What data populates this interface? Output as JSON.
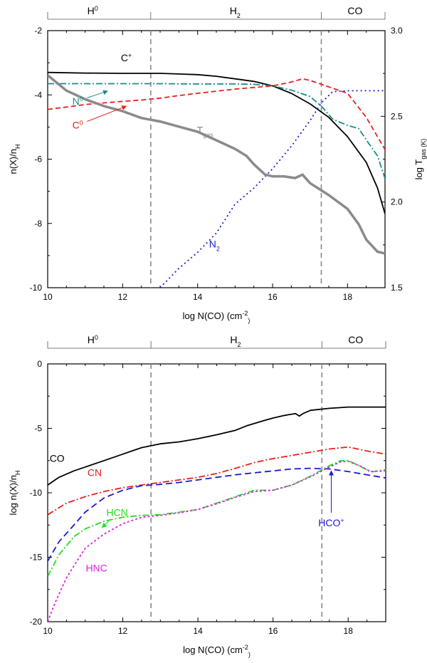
{
  "chart_data": [
    {
      "type": "line",
      "title": "",
      "xlabel": "log N(CO) (cm-2)",
      "xlabel_parts": [
        "log N(CO) (cm",
        "-2",
        ")"
      ],
      "ylabel": "n(X)/nH",
      "ylabel_parts": [
        "n(X)/n",
        "H"
      ],
      "y2label": "log Tgas (K)",
      "y2label_parts": [
        "log T",
        "gas",
        " (K)"
      ],
      "xlim": [
        10,
        19
      ],
      "ylim": [
        -10,
        -2
      ],
      "y2lim": [
        1.5,
        3.0
      ],
      "xticks": [
        "10",
        "12",
        "14",
        "16",
        "18"
      ],
      "yticks": [
        "-10",
        "-8",
        "-6",
        "-4",
        "-2"
      ],
      "y2ticks": [
        "1.5",
        "2.0",
        "2.5",
        "3.0"
      ],
      "zones": [
        {
          "parts": [
            "H",
            "0",
            ""
          ],
          "x": 11.2
        },
        {
          "parts": [
            "H",
            "",
            "2"
          ],
          "x": 15.0
        },
        {
          "parts": [
            "CO",
            "",
            ""
          ],
          "x": 18.2
        }
      ],
      "boundaries": [
        12.75,
        17.3
      ],
      "series": [
        {
          "name": "C+",
          "label_parts": [
            "C",
            "+",
            ""
          ],
          "color": "#000000",
          "dash": "",
          "width": 1.8,
          "axis": "left",
          "x": [
            10,
            11,
            12,
            13,
            14,
            14.5,
            15,
            15.5,
            16,
            16.5,
            17,
            17.5,
            18,
            18.5,
            18.8,
            19
          ],
          "y": [
            -3.3,
            -3.32,
            -3.33,
            -3.33,
            -3.37,
            -3.42,
            -3.5,
            -3.58,
            -3.72,
            -3.95,
            -4.28,
            -4.7,
            -5.3,
            -6.1,
            -6.9,
            -7.7
          ]
        },
        {
          "name": "N0",
          "label_parts": [
            "N",
            "0",
            ""
          ],
          "color": "#1a8a8a",
          "dash": "9,3,2,3",
          "width": 1.8,
          "axis": "left",
          "x": [
            10,
            11,
            12,
            13,
            14,
            15,
            15.5,
            16,
            16.5,
            17,
            17.3,
            17.6,
            18,
            18.3,
            18.5,
            18.8,
            19
          ],
          "y": [
            -3.65,
            -3.65,
            -3.65,
            -3.65,
            -3.66,
            -3.66,
            -3.67,
            -3.72,
            -3.85,
            -4.05,
            -4.35,
            -4.75,
            -4.95,
            -5.05,
            -5.4,
            -5.9,
            -6.6
          ]
        },
        {
          "name": "C0",
          "label_parts": [
            "C",
            "0",
            ""
          ],
          "color": "#e8201a",
          "dash": "7,4",
          "width": 1.8,
          "axis": "left",
          "x": [
            10,
            10.5,
            11,
            11.5,
            12,
            12.5,
            13,
            13.5,
            14,
            15,
            16,
            16.5,
            16.8,
            17,
            17.5,
            18,
            18.5,
            19
          ],
          "y": [
            -4.45,
            -4.38,
            -4.3,
            -4.25,
            -4.2,
            -4.16,
            -4.1,
            -4.02,
            -3.95,
            -3.82,
            -3.72,
            -3.6,
            -3.5,
            -3.55,
            -3.75,
            -3.95,
            -4.7,
            -5.7
          ]
        },
        {
          "name": "N2",
          "label_parts": [
            "N",
            "",
            "2"
          ],
          "color": "#1a1ad0",
          "dash": "2,4",
          "width": 1.8,
          "axis": "left",
          "x": [
            13,
            13.5,
            14,
            14.5,
            15,
            15.5,
            16,
            16.5,
            17,
            17.3,
            17.6,
            18,
            19
          ],
          "y": [
            -10,
            -9.4,
            -8.9,
            -8.3,
            -7.4,
            -6.9,
            -6.3,
            -5.6,
            -4.8,
            -4.25,
            -3.9,
            -3.87,
            -3.87
          ]
        },
        {
          "name": "Tgas",
          "label_parts": [
            "T",
            "",
            "gas"
          ],
          "color": "#8a8a8a",
          "dash": "",
          "width": 3.5,
          "axis": "right",
          "x": [
            10,
            10.5,
            11,
            11.5,
            12,
            12.5,
            13,
            13.5,
            14,
            14.5,
            15,
            15.3,
            15.5,
            15.8,
            16,
            16.3,
            16.6,
            16.8,
            17,
            17.5,
            18,
            18.3,
            18.5,
            18.8,
            19
          ],
          "y": [
            2.74,
            2.65,
            2.6,
            2.56,
            2.53,
            2.49,
            2.47,
            2.44,
            2.41,
            2.36,
            2.31,
            2.27,
            2.22,
            2.16,
            2.15,
            2.15,
            2.14,
            2.16,
            2.11,
            2.04,
            1.96,
            1.87,
            1.78,
            1.71,
            1.7
          ]
        }
      ],
      "labels": [
        {
          "series": "C+",
          "x": 12.1,
          "y": -2.95
        },
        {
          "series": "N0",
          "x": 10.8,
          "y": -4.3,
          "arrow_to": [
            11.6,
            -3.88
          ]
        },
        {
          "series": "C0",
          "x": 10.8,
          "y": -5.05,
          "arrow_to": [
            12.1,
            -4.35
          ]
        },
        {
          "series": "Tgas",
          "x": 14.2,
          "y": -5.2
        },
        {
          "series": "N2",
          "x": 14.45,
          "y": -8.75
        }
      ]
    },
    {
      "type": "line",
      "title": "",
      "xlabel": "log N(CO) (cm-2)",
      "xlabel_parts": [
        "log N(CO) (cm",
        "-2",
        ")"
      ],
      "ylabel": "log n(X)/nH",
      "ylabel_parts": [
        "log n(X)/n",
        "H"
      ],
      "xlim": [
        10,
        19
      ],
      "ylim": [
        -20,
        0
      ],
      "xticks": [
        "10",
        "12",
        "14",
        "16",
        "18"
      ],
      "yticks": [
        "-20",
        "-15",
        "-10",
        "-5",
        "0"
      ],
      "zones": [
        {
          "parts": [
            "H",
            "0",
            ""
          ],
          "x": 11.2
        },
        {
          "parts": [
            "H",
            "",
            "2"
          ],
          "x": 15.0
        },
        {
          "parts": [
            "CO",
            "",
            ""
          ],
          "x": 18.2
        }
      ],
      "boundaries": [
        12.75,
        17.3
      ],
      "series": [
        {
          "name": "CO",
          "label_parts": [
            "CO",
            "",
            ""
          ],
          "color": "#000000",
          "dash": "",
          "width": 1.8,
          "x": [
            10,
            10.3,
            10.7,
            11,
            11.5,
            12,
            12.5,
            13,
            13.5,
            14,
            14.5,
            15,
            15.3,
            15.7,
            16,
            16.3,
            16.6,
            16.7,
            16.8,
            17,
            17.5,
            18,
            18.5,
            19
          ],
          "y": [
            -9.4,
            -8.8,
            -8.3,
            -8.0,
            -7.5,
            -7.0,
            -6.5,
            -6.2,
            -6.05,
            -5.8,
            -5.5,
            -5.15,
            -4.8,
            -4.45,
            -4.2,
            -4.0,
            -3.85,
            -4.05,
            -3.85,
            -3.6,
            -3.45,
            -3.35,
            -3.35,
            -3.35
          ]
        },
        {
          "name": "CN",
          "label_parts": [
            "CN",
            "",
            ""
          ],
          "color": "#e8201a",
          "dash": "9,3,2,3",
          "width": 1.8,
          "x": [
            10,
            10.5,
            11,
            11.5,
            12,
            12.5,
            13,
            13.5,
            14,
            14.5,
            15,
            15.5,
            16,
            16.5,
            17,
            17.5,
            18,
            18.5,
            19
          ],
          "y": [
            -11.7,
            -10.8,
            -10.3,
            -9.9,
            -9.6,
            -9.4,
            -9.2,
            -9.0,
            -8.8,
            -8.5,
            -8.1,
            -7.65,
            -7.35,
            -7.1,
            -6.85,
            -6.6,
            -6.45,
            -6.75,
            -7.0
          ]
        },
        {
          "name": "HCO+",
          "label_parts": [
            "HCO",
            "+",
            ""
          ],
          "color": "#1a1ad0",
          "dash": "9,5",
          "width": 1.8,
          "x": [
            10,
            10.3,
            10.7,
            11,
            11.5,
            12,
            12.5,
            13,
            13.5,
            14,
            15,
            16,
            16.5,
            17,
            17.5,
            18,
            18.5,
            19
          ],
          "y": [
            -15.3,
            -13.8,
            -12.5,
            -11.5,
            -10.4,
            -9.8,
            -9.45,
            -9.35,
            -9.2,
            -9.0,
            -8.6,
            -8.3,
            -8.15,
            -8.1,
            -8.15,
            -8.35,
            -8.6,
            -8.85
          ]
        },
        {
          "name": "HCN",
          "label_parts": [
            "HCN",
            "",
            ""
          ],
          "color": "#22dd22",
          "dash": "9,3,2,3",
          "width": 1.8,
          "x": [
            10,
            10.3,
            10.7,
            11,
            11.5,
            12,
            12.5,
            13,
            13.5,
            14,
            14.5,
            15,
            15.5,
            16,
            16.5,
            17,
            17.5,
            17.8,
            18,
            18.3,
            18.6,
            19
          ],
          "y": [
            -16.5,
            -14.8,
            -13.4,
            -12.8,
            -12.2,
            -11.9,
            -11.75,
            -11.7,
            -11.5,
            -11.3,
            -10.8,
            -10.3,
            -9.8,
            -9.8,
            -9.4,
            -8.7,
            -7.9,
            -7.5,
            -7.5,
            -7.9,
            -8.4,
            -8.2
          ]
        },
        {
          "name": "HNC",
          "label_parts": [
            "HNC",
            "",
            ""
          ],
          "color": "#e020e0",
          "dash": "3,3",
          "width": 1.8,
          "x": [
            10,
            10.2,
            10.5,
            10.8,
            11,
            11.5,
            12,
            12.5,
            13,
            13.5,
            14,
            14.5,
            15,
            15.5,
            16,
            16.5,
            17,
            17.5,
            17.8,
            18,
            18.3,
            18.6,
            19
          ],
          "y": [
            -20,
            -18.5,
            -16.6,
            -15.2,
            -14.3,
            -13.2,
            -12.4,
            -11.9,
            -11.75,
            -11.55,
            -11.3,
            -10.85,
            -10.35,
            -9.9,
            -9.8,
            -9.4,
            -8.75,
            -8.0,
            -7.6,
            -7.55,
            -7.9,
            -8.35,
            -8.3
          ]
        }
      ],
      "labels": [
        {
          "series": "CO",
          "x": 10.25,
          "y": -7.6
        },
        {
          "series": "CN",
          "x": 11.25,
          "y": -8.7
        },
        {
          "series": "HCN",
          "x": 11.85,
          "y": -11.8,
          "arrow_to": [
            11.45,
            -12.7
          ]
        },
        {
          "series": "HNC",
          "x": 11.3,
          "y": -16.1
        },
        {
          "series": "HCO+",
          "x": 17.55,
          "y": -12.6,
          "arrow_to": [
            17.55,
            -8.3
          ]
        }
      ]
    }
  ]
}
